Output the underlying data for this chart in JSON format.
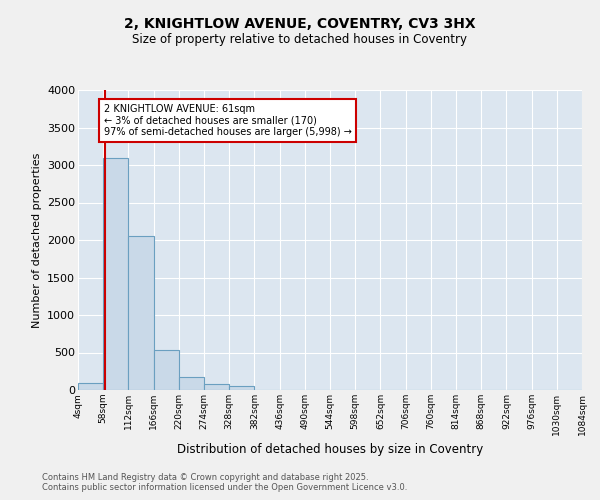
{
  "title1": "2, KNIGHTLOW AVENUE, COVENTRY, CV3 3HX",
  "title2": "Size of property relative to detached houses in Coventry",
  "xlabel": "Distribution of detached houses by size in Coventry",
  "ylabel": "Number of detached properties",
  "annotation_title": "2 KNIGHTLOW AVENUE: 61sqm",
  "annotation_line1": "← 3% of detached houses are smaller (170)",
  "annotation_line2": "97% of semi-detached houses are larger (5,998) →",
  "property_size_sqm": 61,
  "bin_edges": [
    4,
    58,
    112,
    166,
    220,
    274,
    328,
    382,
    436,
    490,
    544,
    598,
    652,
    706,
    760,
    814,
    868,
    922,
    976,
    1030,
    1084
  ],
  "bar_values": [
    100,
    3100,
    2050,
    530,
    175,
    80,
    60,
    0,
    0,
    0,
    0,
    0,
    0,
    0,
    0,
    0,
    0,
    0,
    0,
    0
  ],
  "bar_color": "#c9d9e8",
  "bar_edge_color": "#6a9fc0",
  "vline_color": "#cc0000",
  "vline_x": 61,
  "annotation_box_color": "#cc0000",
  "background_color": "#dce6f0",
  "fig_background": "#f0f0f0",
  "ylim": [
    0,
    4000
  ],
  "yticks": [
    0,
    500,
    1000,
    1500,
    2000,
    2500,
    3000,
    3500,
    4000
  ],
  "footer1": "Contains HM Land Registry data © Crown copyright and database right 2025.",
  "footer2": "Contains public sector information licensed under the Open Government Licence v3.0."
}
